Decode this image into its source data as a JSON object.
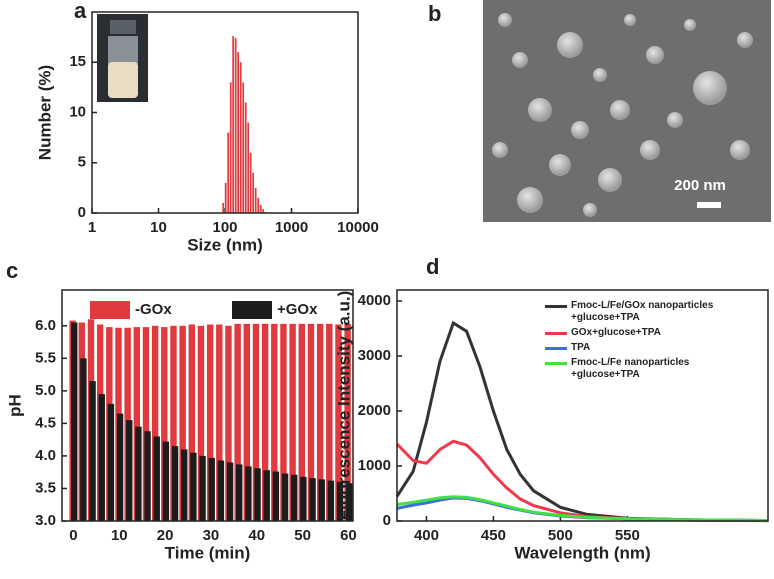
{
  "panel_labels": [
    "a",
    "b",
    "c",
    "d"
  ],
  "sem_image": {
    "scale_bar": "200 nm"
  },
  "chart_data": [
    {
      "type": "histogram",
      "xlabel": "Size (nm)",
      "ylabel": "Number (%)",
      "color": "#e0393e",
      "log_x": true,
      "xlim": [
        1,
        10000
      ],
      "xticks": [
        1,
        10,
        100,
        1000,
        10000
      ],
      "ylim": [
        0,
        20
      ],
      "yticks": [
        0,
        5,
        10,
        15
      ],
      "bins": [
        90,
        98,
        107,
        117,
        127,
        139,
        151,
        165,
        180,
        196,
        214,
        233,
        254,
        277,
        302,
        330,
        360,
        392,
        428
      ],
      "values": [
        1,
        3,
        8,
        13,
        17.6,
        17.4,
        16,
        15,
        13,
        11,
        9,
        6,
        4,
        2.5,
        1.5,
        0.8,
        0.4,
        0.1
      ]
    },
    {
      "type": "bar",
      "xlabel": "Time (min)",
      "ylabel": "pH",
      "xlim": [
        -2.5,
        61
      ],
      "xticks": [
        0,
        10,
        20,
        30,
        40,
        50,
        60
      ],
      "ylim": [
        3.0,
        6.55
      ],
      "yticks": [
        {
          "value": 3,
          "label": "3.0"
        },
        {
          "value": 3.5,
          "label": "3.5"
        },
        {
          "value": 4,
          "label": "4.0"
        },
        {
          "value": 4.5,
          "label": "4.5"
        },
        {
          "value": 5,
          "label": "5.0"
        },
        {
          "value": 5.5,
          "label": "5.5"
        },
        {
          "value": 6,
          "label": "6.0"
        }
      ],
      "x": [
        0,
        2,
        4,
        6,
        8,
        10,
        12,
        14,
        16,
        18,
        20,
        22,
        24,
        26,
        28,
        30,
        32,
        34,
        36,
        38,
        40,
        42,
        44,
        46,
        48,
        50,
        52,
        54,
        56,
        58,
        60
      ],
      "series": [
        {
          "name": "-GOx",
          "color": "#e0393e",
          "values": [
            6.08,
            6.05,
            6.1,
            6.02,
            5.98,
            5.97,
            5.97,
            5.98,
            5.98,
            6.0,
            5.98,
            6.0,
            6.0,
            6.02,
            6.0,
            6.02,
            6.02,
            6.0,
            6.03,
            6.03,
            6.03,
            6.03,
            6.03,
            6.03,
            6.03,
            6.03,
            6.03,
            6.03,
            6.03,
            6.02,
            6.03
          ]
        },
        {
          "name": "+GOx",
          "color": "#1c1c1c",
          "values": [
            6.05,
            5.5,
            5.15,
            4.95,
            4.8,
            4.65,
            4.55,
            4.45,
            4.38,
            4.3,
            4.22,
            4.15,
            4.1,
            4.05,
            4.0,
            3.97,
            3.93,
            3.9,
            3.87,
            3.84,
            3.81,
            3.78,
            3.76,
            3.73,
            3.71,
            3.68,
            3.66,
            3.64,
            3.62,
            3.6,
            3.58
          ]
        }
      ]
    },
    {
      "type": "line",
      "xlabel": "Wavelength  (nm)",
      "ylabel": "Fluorescence Intensity  (a.u.)",
      "xlim": [
        378,
        655
      ],
      "xticks": [
        400,
        450,
        500,
        550
      ],
      "ylim": [
        0,
        4200
      ],
      "yticks": [
        0,
        1000,
        2000,
        3000,
        4000
      ],
      "x": [
        378,
        390,
        400,
        410,
        420,
        430,
        440,
        450,
        460,
        470,
        480,
        500,
        520,
        550,
        600,
        655
      ],
      "series": [
        {
          "name": "Fmoc-L/Fe/GOx nanoparticles\n+glucose+TPA",
          "color": "#333333",
          "values": [
            450,
            900,
            1800,
            2900,
            3600,
            3450,
            2800,
            2000,
            1300,
            850,
            550,
            250,
            120,
            50,
            20,
            10
          ]
        },
        {
          "name": "GOx+glucose+TPA",
          "color": "#f2384d",
          "values": [
            1400,
            1100,
            1050,
            1300,
            1450,
            1380,
            1150,
            850,
            600,
            400,
            280,
            150,
            80,
            40,
            15,
            5
          ]
        },
        {
          "name": "TPA",
          "color": "#3b6fe0",
          "values": [
            230,
            290,
            330,
            380,
            420,
            410,
            370,
            310,
            250,
            200,
            150,
            90,
            60,
            40,
            20,
            10
          ]
        },
        {
          "name": "Fmoc-L/Fe nanoparticles\n+glucose+TPA",
          "color": "#43e043",
          "values": [
            300,
            340,
            380,
            420,
            440,
            430,
            390,
            330,
            270,
            210,
            160,
            100,
            65,
            40,
            20,
            10
          ]
        }
      ]
    }
  ]
}
